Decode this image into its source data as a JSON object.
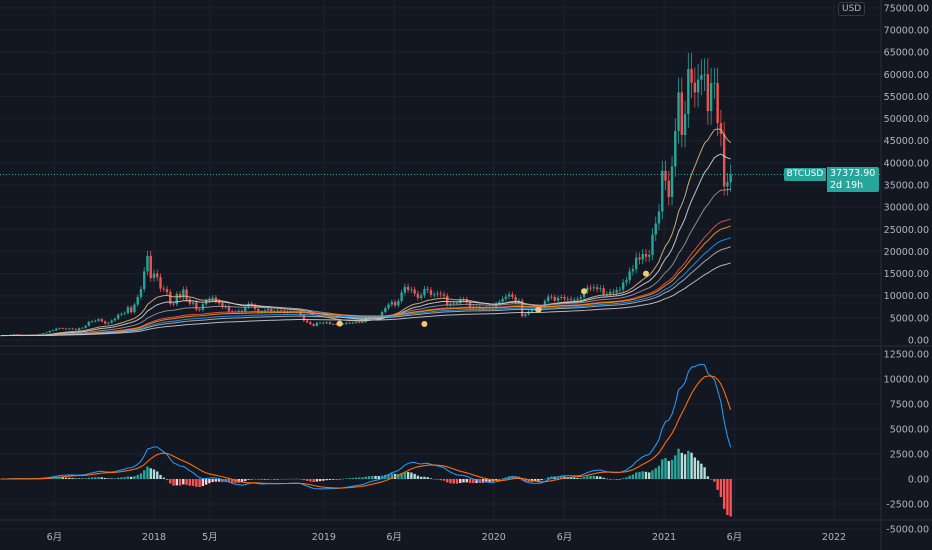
{
  "symbol": "BTCUSD",
  "currency_badge": "USD",
  "last_price": "37373.90",
  "countdown": "2d 19h",
  "colors": {
    "background": "#131722",
    "grid": "#1e222d",
    "up": "#26a69a",
    "down": "#ef5350",
    "hist_up_strong": "#26a69a",
    "hist_up_weak": "#b2dfdb",
    "hist_down_strong": "#ff5252",
    "hist_down_weak": "#ffcdd2",
    "macd_line": "#2196f3",
    "signal_line": "#ff6d00",
    "marker": "#f7c873"
  },
  "chart_data": [
    {
      "type": "candlestick",
      "interval": "1W",
      "start": "2017-02-06",
      "closes": [
        1010,
        1000,
        1050,
        1180,
        1250,
        1230,
        960,
        1040,
        1080,
        1180,
        1190,
        1250,
        1350,
        1550,
        1720,
        2050,
        2200,
        2550,
        2650,
        2580,
        2500,
        2600,
        2500,
        2300,
        2700,
        2750,
        3200,
        4100,
        4200,
        4350,
        4700,
        4200,
        3700,
        3900,
        4400,
        4800,
        5700,
        5900,
        6100,
        7400,
        6300,
        8000,
        9700,
        11500,
        15500,
        19000,
        14000,
        15000,
        14200,
        11600,
        11500,
        10800,
        8200,
        8100,
        10400,
        9600,
        11400,
        9200,
        8200,
        8500,
        6900,
        6800,
        8100,
        8900,
        9300,
        9600,
        8700,
        8300,
        7400,
        7600,
        6500,
        6400,
        6300,
        6600,
        6300,
        7400,
        8200,
        7800,
        7000,
        6300,
        6400,
        6700,
        7000,
        6500,
        6500,
        6700,
        6600,
        6300,
        6400,
        6500,
        6400,
        6400,
        5600,
        4400,
        4000,
        3600,
        3200,
        3900,
        3900,
        3800,
        4000,
        3600,
        3600,
        3500,
        3650,
        3650,
        3900,
        3850,
        3900,
        4000,
        3990,
        4100,
        5000,
        5300,
        5300,
        5200,
        5300,
        6300,
        7200,
        8000,
        8600,
        7800,
        8800,
        10700,
        12000,
        11300,
        11400,
        10500,
        9500,
        10100,
        11500,
        11300,
        10200,
        10300,
        10500,
        10300,
        10000,
        8000,
        8200,
        8300,
        8300,
        9200,
        9200,
        8500,
        7300,
        7500,
        7500,
        7100,
        7200,
        7400,
        7200,
        7400,
        8200,
        8600,
        9300,
        9800,
        10300,
        9700,
        8600,
        8900,
        5400,
        5800,
        6400,
        6800,
        6900,
        7100,
        7500,
        8800,
        9800,
        9700,
        8900,
        9500,
        9700,
        9300,
        9300,
        9100,
        9100,
        9300,
        9700,
        11000,
        11800,
        11700,
        11900,
        11500,
        11700,
        10300,
        10400,
        10900,
        10700,
        11300,
        11400,
        13000,
        13500,
        15500,
        16000,
        18600,
        18200,
        19400,
        18800,
        19200,
        23800,
        26300,
        29000,
        38200,
        36000,
        32300,
        39200,
        47200,
        55900,
        46300,
        51000,
        61200,
        58100,
        55900,
        58800,
        59800,
        60000,
        51700,
        58000,
        58000,
        49000,
        46500,
        34700,
        35600,
        37373.9
      ],
      "moving_averages": [
        {
          "period": 20,
          "color": "#e0b878"
        },
        {
          "period": 30,
          "color": "#d1d4dc"
        },
        {
          "period": 50,
          "color": "#9598a1"
        },
        {
          "period": 80,
          "color": "#ef5350"
        },
        {
          "period": 90,
          "color": "#ff9800"
        },
        {
          "period": 110,
          "color": "#2196f3"
        },
        {
          "period": 130,
          "color": "#b2b5be"
        },
        {
          "period": 180,
          "color": "#c8cbd3"
        }
      ],
      "markers": [
        {
          "date": "2019-02-04",
          "price": 3700
        },
        {
          "date": "2019-08-05",
          "price": 3600
        },
        {
          "date": "2020-04-06",
          "price": 6800
        },
        {
          "date": "2020-07-13",
          "price": 11000
        },
        {
          "date": "2020-11-23",
          "price": 15000
        }
      ],
      "y_ticks": [
        "0.00",
        "5000.00",
        "10000.00",
        "15000.00",
        "20000.00",
        "25000.00",
        "30000.00",
        "35000.00",
        "40000.00",
        "45000.00",
        "50000.00",
        "55000.00",
        "60000.00",
        "65000.00",
        "70000.00",
        "75000.00"
      ],
      "ylim": [
        0,
        75000
      ]
    },
    {
      "type": "macd",
      "fast": 12,
      "slow": 26,
      "signal": 9,
      "y_ticks": [
        "-5000.00",
        "-2500.00",
        "0.00",
        "2500.00",
        "5000.00",
        "7500.00",
        "10000.00",
        "12500.00"
      ],
      "ylim": [
        -5000,
        12500
      ]
    }
  ],
  "time_axis": [
    {
      "label": "6月",
      "date": "2017-06-01"
    },
    {
      "label": "2018",
      "date": "2018-01-01"
    },
    {
      "label": "5月",
      "date": "2018-05-01"
    },
    {
      "label": "2019",
      "date": "2019-01-01"
    },
    {
      "label": "6月",
      "date": "2019-06-01"
    },
    {
      "label": "2020",
      "date": "2020-01-01"
    },
    {
      "label": "6月",
      "date": "2020-06-01"
    },
    {
      "label": "2021",
      "date": "2021-01-01"
    },
    {
      "label": "6月",
      "date": "2021-06-01"
    },
    {
      "label": "2022",
      "date": "2022-01-01"
    }
  ]
}
